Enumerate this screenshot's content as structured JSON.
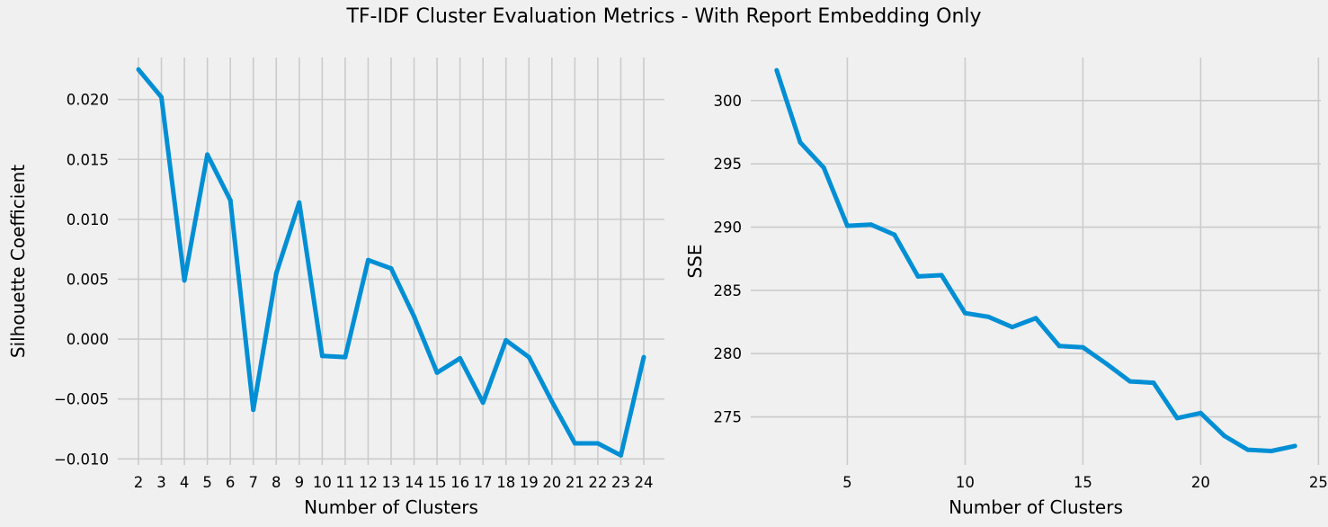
{
  "title": "TF-IDF Cluster Evaluation Metrics - With Report Embedding Only",
  "colors": {
    "line": "#008fd5",
    "grid": "#cbcbcb",
    "background": "#f0f0f0"
  },
  "chart_data": [
    {
      "type": "line",
      "xlabel": "Number of Clusters",
      "ylabel": "Silhouette Coefficient",
      "xlim": [
        1.1,
        24.9
      ],
      "ylim": [
        -0.0105,
        0.0235
      ],
      "grid": true,
      "xticks": [
        2,
        3,
        4,
        5,
        6,
        7,
        8,
        9,
        10,
        11,
        12,
        13,
        14,
        15,
        16,
        17,
        18,
        19,
        20,
        21,
        22,
        23,
        24
      ],
      "yticks": [
        -0.01,
        -0.005,
        0.0,
        0.005,
        0.01,
        0.015,
        0.02
      ],
      "ytick_labels": [
        "−0.010",
        "−0.005",
        "0.000",
        "0.005",
        "0.010",
        "0.015",
        "0.020"
      ],
      "series": [
        {
          "x": [
            2,
            3,
            4,
            5,
            6,
            7,
            8,
            9,
            10,
            11,
            12,
            13,
            14,
            15,
            16,
            17,
            18,
            19,
            20,
            21,
            22,
            23,
            24
          ],
          "values": [
            0.0225,
            0.0202,
            0.0049,
            0.0154,
            0.0116,
            -0.0059,
            0.0055,
            0.0114,
            -0.0014,
            -0.0015,
            0.0066,
            0.0059,
            0.0019,
            -0.0028,
            -0.0016,
            -0.0053,
            -0.0001,
            -0.0015,
            -0.0052,
            -0.0087,
            -0.0087,
            -0.0097,
            -0.0015
          ]
        }
      ]
    },
    {
      "type": "line",
      "xlabel": "Number of Clusters",
      "ylabel": "SSE",
      "xlim": [
        0.9,
        25.1
      ],
      "ylim": [
        271.2,
        303.4
      ],
      "grid": true,
      "xticks": [
        5,
        10,
        15,
        20,
        25
      ],
      "yticks": [
        275,
        280,
        285,
        290,
        295,
        300
      ],
      "series": [
        {
          "x": [
            2,
            3,
            4,
            5,
            6,
            7,
            8,
            9,
            10,
            11,
            12,
            13,
            14,
            15,
            16,
            17,
            18,
            19,
            20,
            21,
            22,
            23,
            24
          ],
          "values": [
            302.4,
            296.7,
            294.7,
            290.1,
            290.2,
            289.4,
            286.1,
            286.2,
            283.2,
            282.9,
            282.1,
            282.8,
            280.6,
            280.5,
            279.2,
            277.8,
            277.7,
            274.9,
            275.3,
            273.5,
            272.4,
            272.3,
            272.7
          ]
        }
      ]
    }
  ]
}
